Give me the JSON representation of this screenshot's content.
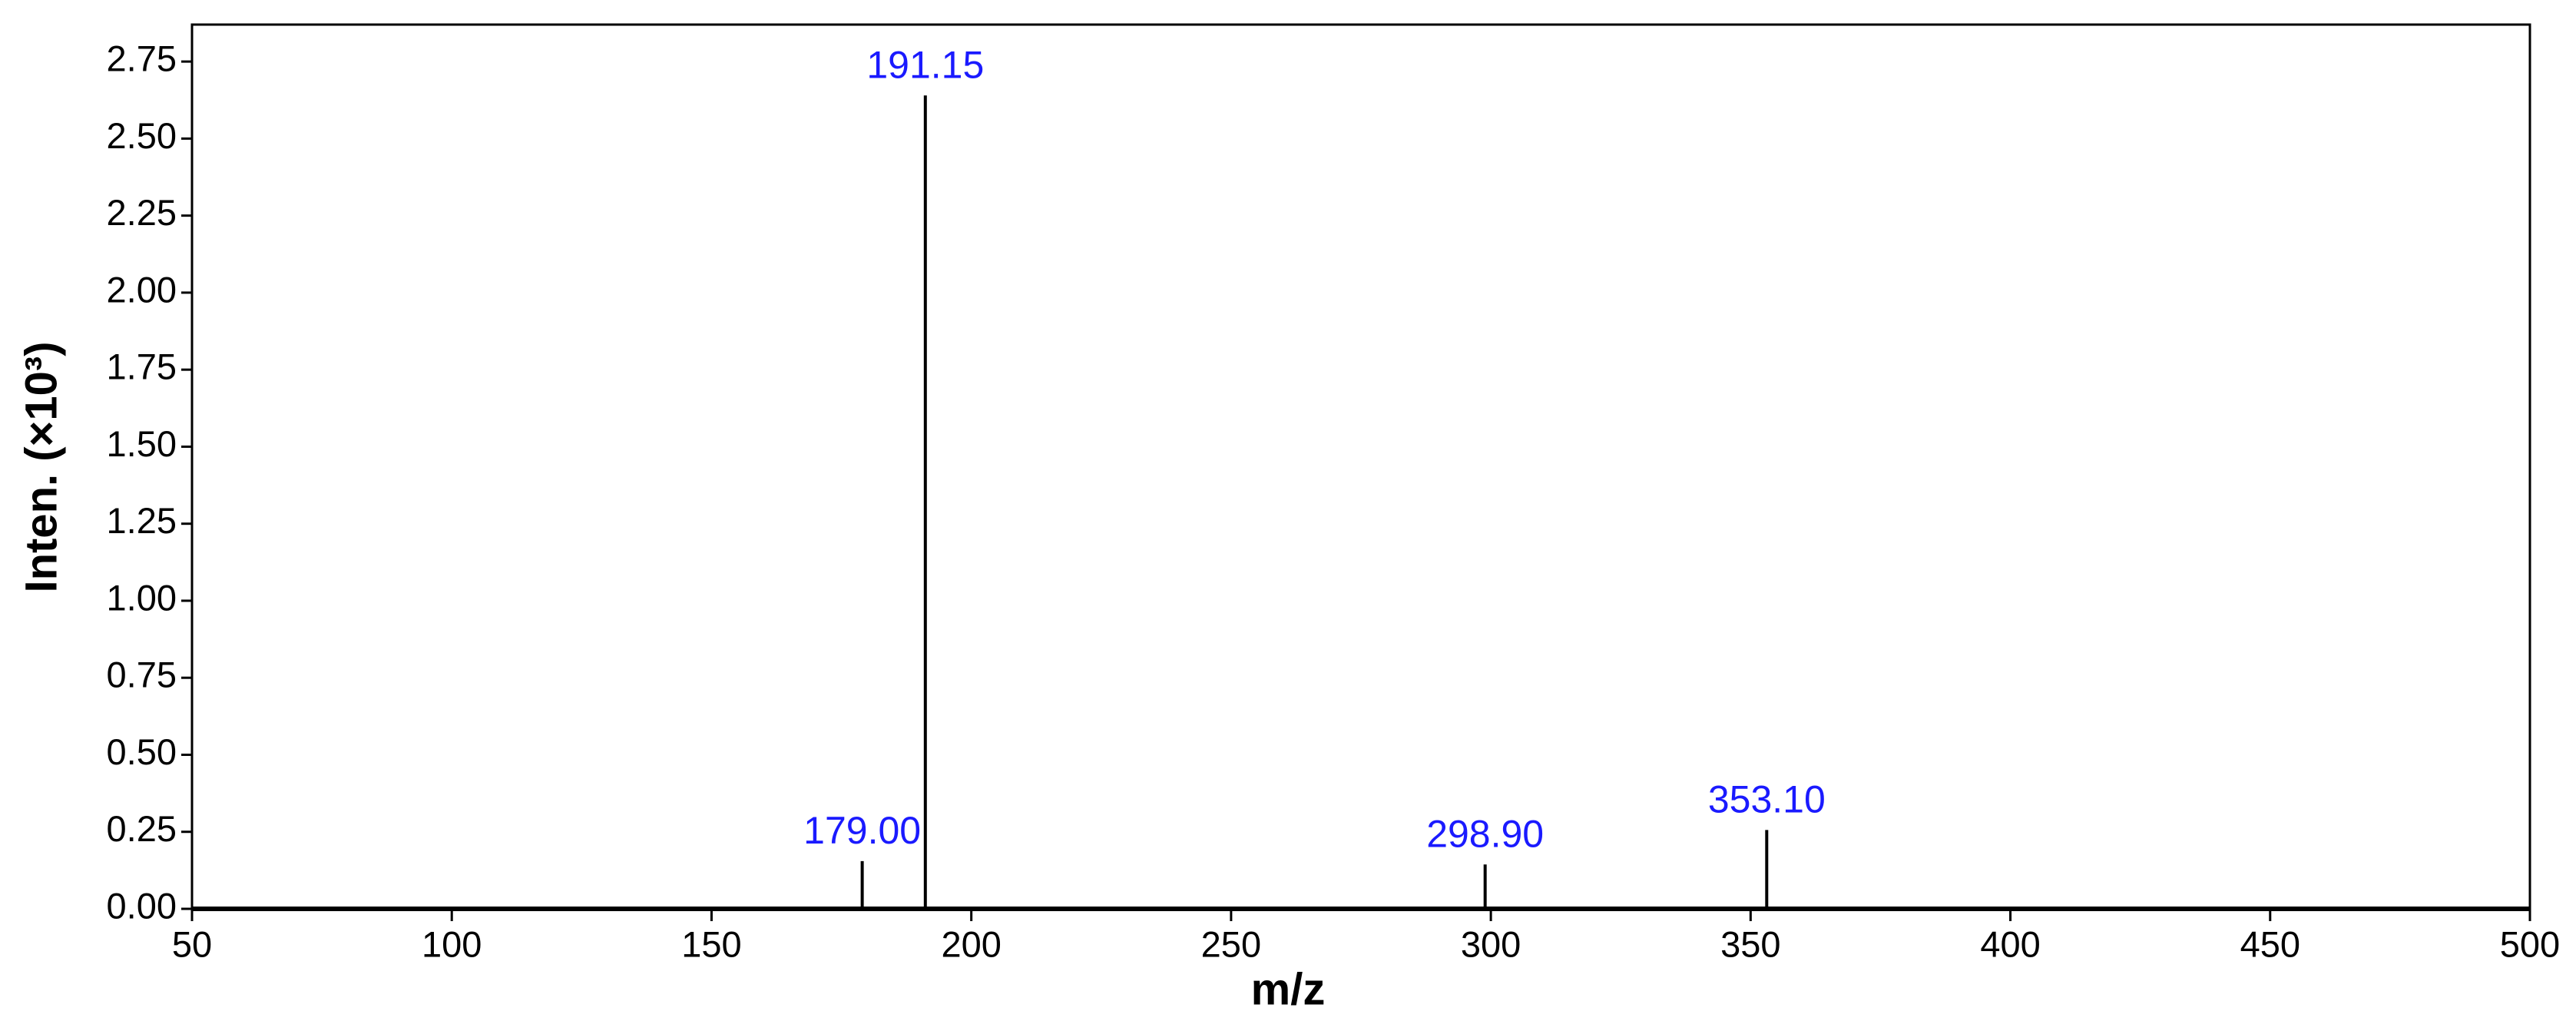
{
  "chart_data": {
    "type": "stem",
    "x_axis_label": "m/z",
    "y_axis_label": "Inten. (×10³)",
    "x": [
      179.0,
      191.15,
      298.9,
      353.1
    ],
    "x_labels": [
      "179.00",
      "191.15",
      "298.90",
      "353.10"
    ],
    "values": [
      0.155,
      2.64,
      0.144,
      0.256
    ],
    "color": "#000000",
    "label_color": "#1a1aff",
    "xlim": [
      50,
      500
    ],
    "xticks": [
      50,
      100,
      150,
      200,
      250,
      300,
      350,
      400,
      450,
      500
    ],
    "ylim": [
      0,
      2.87
    ],
    "yticks": [
      {
        "value": 0,
        "label": "0.00"
      },
      {
        "value": 0.25,
        "label": "0.25"
      },
      {
        "value": 0.5,
        "label": "0.50"
      },
      {
        "value": 0.75,
        "label": "0.75"
      },
      {
        "value": 1,
        "label": "1.00"
      },
      {
        "value": 1.25,
        "label": "1.25"
      },
      {
        "value": 1.5,
        "label": "1.50"
      },
      {
        "value": 1.75,
        "label": "1.75"
      },
      {
        "value": 2,
        "label": "2.00"
      },
      {
        "value": 2.25,
        "label": "2.25"
      },
      {
        "value": 2.5,
        "label": "2.50"
      },
      {
        "value": 2.75,
        "label": "2.75"
      }
    ],
    "grid": false
  }
}
